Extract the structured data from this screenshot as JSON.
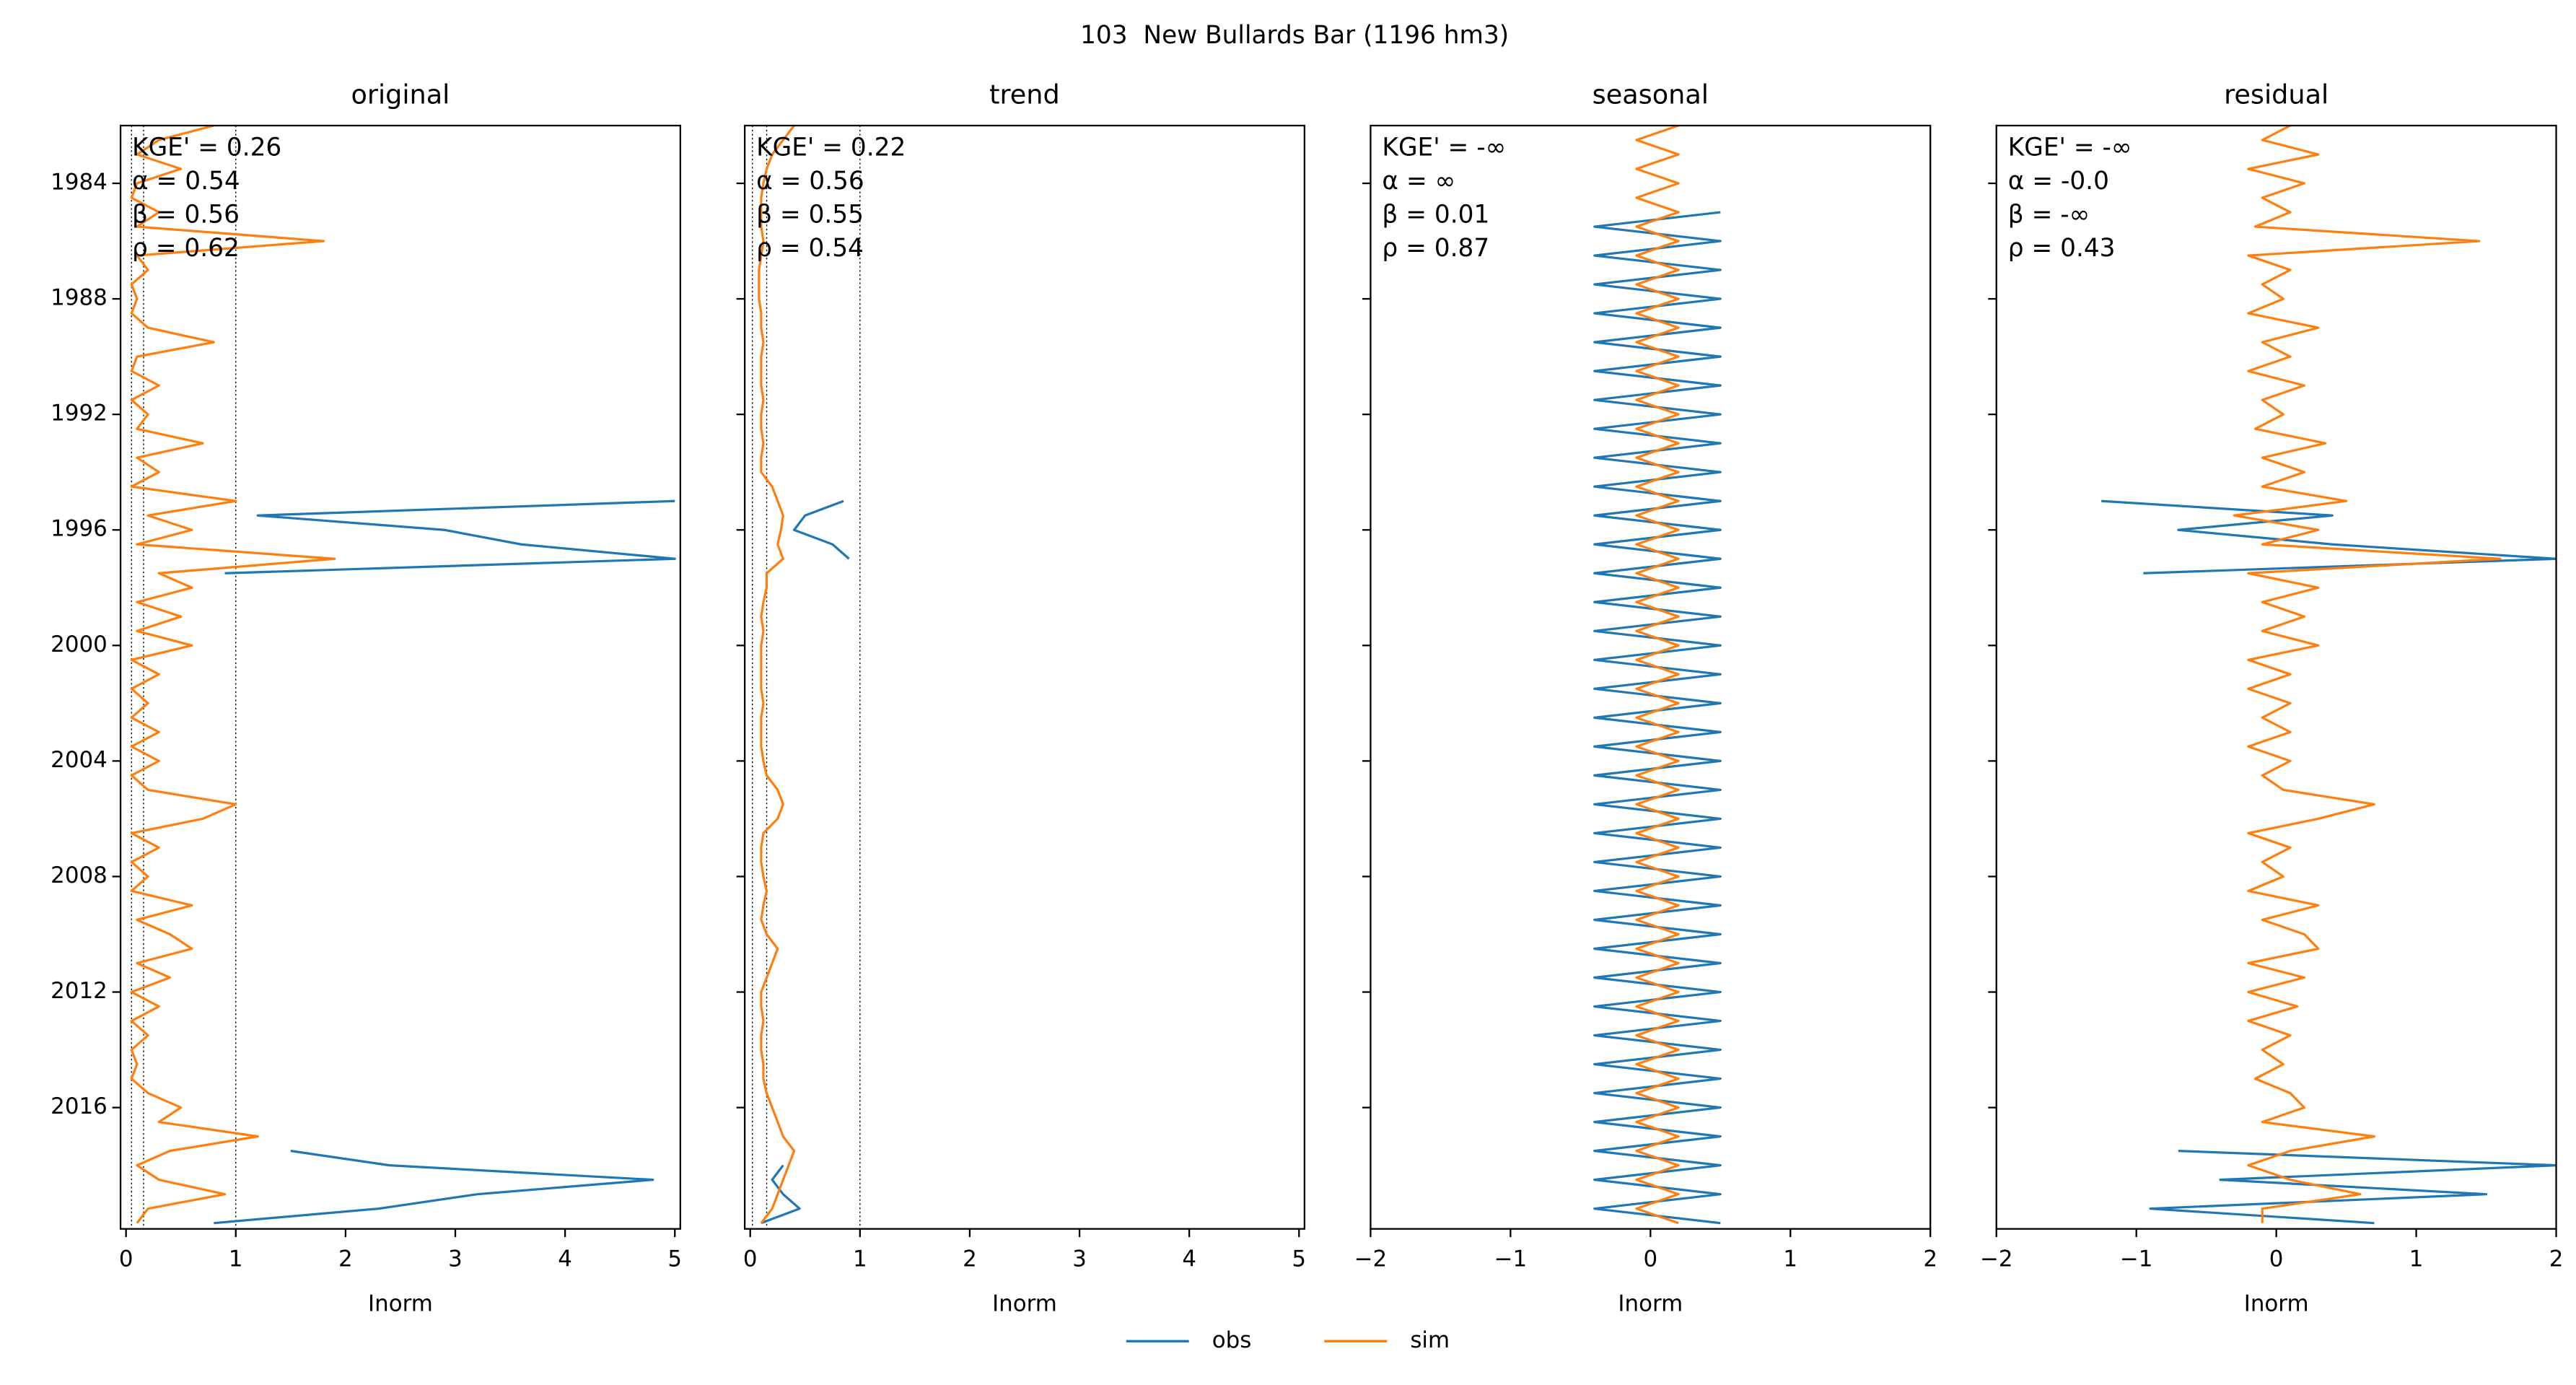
{
  "title": "103  New Bullards Bar (1196 hm3)",
  "chart_data": [
    {
      "type": "line",
      "title": "original",
      "xlabel": "Inorm",
      "xlim": [
        -0.05,
        5.05
      ],
      "xticks": [
        0,
        1,
        2,
        3,
        4,
        5
      ],
      "vlines": [
        0.05,
        0.16,
        1
      ],
      "ylim": [
        1982.0,
        2020.2
      ],
      "yticks": [
        1984,
        1988,
        1992,
        1996,
        2000,
        2004,
        2008,
        2012,
        2016
      ],
      "y": [
        1982.0,
        1982.5,
        1983.0,
        1983.5,
        1984.0,
        1984.5,
        1985.0,
        1985.5,
        1986.0,
        1986.5,
        1987.0,
        1987.5,
        1988.0,
        1988.5,
        1989.0,
        1989.5,
        1990.0,
        1990.5,
        1991.0,
        1991.5,
        1992.0,
        1992.5,
        1993.0,
        1993.5,
        1994.0,
        1994.5,
        1995.0,
        1995.5,
        1996.0,
        1996.5,
        1997.0,
        1997.5,
        1998.0,
        1998.5,
        1999.0,
        1999.5,
        2000.0,
        2000.5,
        2001.0,
        2001.5,
        2002.0,
        2002.5,
        2003.0,
        2003.5,
        2004.0,
        2004.5,
        2005.0,
        2005.5,
        2006.0,
        2006.5,
        2007.0,
        2007.5,
        2008.0,
        2008.5,
        2009.0,
        2009.5,
        2010.0,
        2010.5,
        2011.0,
        2011.5,
        2012.0,
        2012.5,
        2013.0,
        2013.5,
        2014.0,
        2014.5,
        2015.0,
        2015.5,
        2016.0,
        2016.5,
        2017.0,
        2017.5,
        2018.0,
        2018.5,
        2019.0,
        2019.5,
        2020.0
      ],
      "metrics": [
        "KGE' = 0.26",
        "α = 0.54",
        "β = 0.56",
        "ρ = 0.62"
      ],
      "series": [
        {
          "name": "obs",
          "color": "#1f77b4",
          "values": [
            null,
            null,
            null,
            null,
            null,
            null,
            null,
            null,
            null,
            null,
            null,
            null,
            null,
            null,
            null,
            null,
            null,
            null,
            null,
            null,
            null,
            null,
            null,
            null,
            null,
            null,
            5.0,
            1.2,
            2.9,
            3.6,
            5.0,
            0.9,
            null,
            null,
            null,
            null,
            null,
            null,
            null,
            null,
            null,
            null,
            null,
            null,
            null,
            null,
            null,
            null,
            null,
            null,
            null,
            null,
            null,
            null,
            null,
            null,
            null,
            null,
            null,
            null,
            null,
            null,
            null,
            null,
            null,
            null,
            null,
            null,
            null,
            null,
            null,
            1.5,
            2.4,
            4.8,
            3.2,
            2.3,
            0.8
          ]
        },
        {
          "name": "sim",
          "color": "#ff7f0e",
          "values": [
            0.8,
            0.3,
            0.1,
            0.5,
            0.1,
            0.05,
            0.3,
            0.1,
            1.8,
            0.1,
            0.2,
            0.05,
            0.1,
            0.05,
            0.2,
            0.8,
            0.1,
            0.05,
            0.3,
            0.05,
            0.2,
            0.1,
            0.7,
            0.1,
            0.3,
            0.05,
            1.0,
            0.2,
            0.6,
            0.1,
            1.9,
            0.3,
            0.6,
            0.1,
            0.5,
            0.1,
            0.6,
            0.05,
            0.3,
            0.05,
            0.2,
            0.05,
            0.3,
            0.05,
            0.3,
            0.05,
            0.2,
            1.0,
            0.7,
            0.05,
            0.3,
            0.05,
            0.2,
            0.05,
            0.6,
            0.1,
            0.4,
            0.6,
            0.1,
            0.4,
            0.05,
            0.3,
            0.05,
            0.2,
            0.05,
            0.1,
            0.05,
            0.2,
            0.5,
            0.3,
            1.2,
            0.4,
            0.1,
            0.3,
            0.9,
            0.2,
            0.1
          ]
        }
      ]
    },
    {
      "type": "line",
      "title": "trend",
      "xlabel": "Inorm",
      "sharey": true,
      "xlim": [
        -0.05,
        5.05
      ],
      "xticks": [
        0,
        1,
        2,
        3,
        4,
        5
      ],
      "vlines": [
        0.02,
        0.15,
        1
      ],
      "metrics": [
        "KGE' = 0.22",
        "α = 0.56",
        "β = 0.55",
        "ρ = 0.54"
      ],
      "series": [
        {
          "name": "obs",
          "color": "#1f77b4",
          "values": [
            null,
            null,
            null,
            null,
            null,
            null,
            null,
            null,
            null,
            null,
            null,
            null,
            null,
            null,
            null,
            null,
            null,
            null,
            null,
            null,
            null,
            null,
            null,
            null,
            null,
            null,
            0.85,
            0.5,
            0.4,
            0.75,
            0.9,
            null,
            null,
            null,
            null,
            null,
            null,
            null,
            null,
            null,
            null,
            null,
            null,
            null,
            null,
            null,
            null,
            null,
            null,
            null,
            null,
            null,
            null,
            null,
            null,
            null,
            null,
            null,
            null,
            null,
            null,
            null,
            null,
            null,
            null,
            null,
            null,
            null,
            null,
            null,
            null,
            null,
            0.3,
            0.2,
            0.3,
            0.45,
            0.1
          ]
        },
        {
          "name": "sim",
          "color": "#ff7f0e",
          "values": [
            0.4,
            0.3,
            0.2,
            0.15,
            0.12,
            0.1,
            0.1,
            0.1,
            0.12,
            0.1,
            0.08,
            0.08,
            0.08,
            0.1,
            0.1,
            0.12,
            0.1,
            0.1,
            0.1,
            0.12,
            0.1,
            0.1,
            0.12,
            0.1,
            0.1,
            0.2,
            0.25,
            0.3,
            0.28,
            0.25,
            0.3,
            0.15,
            0.15,
            0.12,
            0.1,
            0.12,
            0.1,
            0.1,
            0.1,
            0.1,
            0.12,
            0.1,
            0.1,
            0.1,
            0.12,
            0.15,
            0.25,
            0.3,
            0.25,
            0.12,
            0.1,
            0.1,
            0.12,
            0.15,
            0.12,
            0.1,
            0.15,
            0.25,
            0.2,
            0.15,
            0.1,
            0.1,
            0.12,
            0.1,
            0.1,
            0.12,
            0.12,
            0.15,
            0.2,
            0.25,
            0.3,
            0.4,
            0.35,
            0.3,
            0.25,
            0.2,
            0.1
          ]
        }
      ]
    },
    {
      "type": "line",
      "title": "seasonal",
      "xlabel": "Inorm",
      "sharey": true,
      "xlim": [
        -2,
        2
      ],
      "xticks": [
        {
          "value": -2,
          "label": "−2"
        },
        {
          "value": -1,
          "label": "−1"
        },
        0,
        1,
        2
      ],
      "metrics": [
        "KGE' = -∞",
        "α = ∞",
        "β = 0.01",
        "ρ = 0.87"
      ],
      "series": [
        {
          "name": "obs",
          "color": "#1f77b4",
          "values": [
            null,
            null,
            null,
            null,
            null,
            null,
            0.5,
            -0.4,
            0.5,
            -0.4,
            0.5,
            -0.4,
            0.5,
            -0.4,
            0.5,
            -0.4,
            0.5,
            -0.4,
            0.5,
            -0.4,
            0.5,
            -0.4,
            0.5,
            -0.4,
            0.5,
            -0.4,
            0.5,
            -0.4,
            0.5,
            -0.4,
            0.5,
            -0.4,
            0.5,
            -0.4,
            0.5,
            -0.4,
            0.5,
            -0.4,
            0.5,
            -0.4,
            0.5,
            -0.4,
            0.5,
            -0.4,
            0.5,
            -0.4,
            0.5,
            -0.4,
            0.5,
            -0.4,
            0.5,
            -0.4,
            0.5,
            -0.4,
            0.5,
            -0.4,
            0.5,
            -0.4,
            0.5,
            -0.4,
            0.5,
            -0.4,
            0.5,
            -0.4,
            0.5,
            -0.4,
            0.5,
            -0.4,
            0.5,
            -0.4,
            0.5,
            -0.4,
            0.5,
            -0.4,
            0.5,
            -0.4,
            0.5
          ]
        },
        {
          "name": "sim",
          "color": "#ff7f0e",
          "values": [
            0.2,
            -0.1,
            0.2,
            -0.1,
            0.2,
            -0.1,
            0.2,
            -0.1,
            0.2,
            -0.1,
            0.2,
            -0.1,
            0.2,
            -0.1,
            0.2,
            -0.1,
            0.2,
            -0.1,
            0.2,
            -0.1,
            0.2,
            -0.1,
            0.2,
            -0.1,
            0.2,
            -0.1,
            0.2,
            -0.1,
            0.2,
            -0.1,
            0.2,
            -0.1,
            0.2,
            -0.1,
            0.2,
            -0.1,
            0.2,
            -0.1,
            0.2,
            -0.1,
            0.2,
            -0.1,
            0.2,
            -0.1,
            0.2,
            -0.1,
            0.2,
            -0.1,
            0.2,
            -0.1,
            0.2,
            -0.1,
            0.2,
            -0.1,
            0.2,
            -0.1,
            0.2,
            -0.1,
            0.2,
            -0.1,
            0.2,
            -0.1,
            0.2,
            -0.1,
            0.2,
            -0.1,
            0.2,
            -0.1,
            0.2,
            -0.1,
            0.2,
            -0.1,
            0.2,
            -0.1,
            0.2,
            -0.1,
            0.2
          ]
        }
      ]
    },
    {
      "type": "line",
      "title": "residual",
      "xlabel": "Inorm",
      "sharey": true,
      "xlim": [
        -2,
        2
      ],
      "xticks": [
        {
          "value": -2,
          "label": "−2"
        },
        {
          "value": -1,
          "label": "−1"
        },
        0,
        1,
        2
      ],
      "metrics": [
        "KGE' = -∞",
        "α = -0.0",
        "β = -∞",
        "ρ = 0.43"
      ],
      "series": [
        {
          "name": "obs",
          "color": "#1f77b4",
          "values": [
            null,
            null,
            null,
            null,
            null,
            null,
            null,
            null,
            null,
            null,
            null,
            null,
            null,
            null,
            null,
            null,
            null,
            null,
            null,
            null,
            null,
            null,
            null,
            null,
            null,
            null,
            -1.25,
            0.4,
            -0.7,
            0.4,
            2.0,
            -0.95,
            null,
            null,
            null,
            null,
            null,
            null,
            null,
            null,
            null,
            null,
            null,
            null,
            null,
            null,
            null,
            null,
            null,
            null,
            null,
            null,
            null,
            null,
            null,
            null,
            null,
            null,
            null,
            null,
            null,
            null,
            null,
            null,
            null,
            null,
            null,
            null,
            null,
            null,
            null,
            -0.7,
            2.0,
            -0.4,
            1.5,
            -0.9,
            0.7
          ]
        },
        {
          "name": "sim",
          "color": "#ff7f0e",
          "values": [
            0.1,
            -0.1,
            0.3,
            -0.2,
            0.2,
            -0.1,
            0.1,
            -0.15,
            1.45,
            -0.2,
            0.1,
            -0.1,
            0.05,
            -0.2,
            0.3,
            -0.1,
            0.1,
            -0.2,
            0.2,
            -0.1,
            0.05,
            -0.15,
            0.35,
            -0.1,
            0.2,
            -0.1,
            0.5,
            -0.3,
            0.3,
            -0.1,
            1.6,
            -0.2,
            0.3,
            -0.1,
            0.2,
            -0.1,
            0.3,
            -0.2,
            0.1,
            -0.2,
            0.1,
            -0.1,
            0.1,
            -0.2,
            0.1,
            -0.1,
            0.05,
            0.7,
            0.3,
            -0.2,
            0.1,
            -0.1,
            0.05,
            -0.2,
            0.3,
            -0.1,
            0.2,
            0.3,
            -0.2,
            0.2,
            -0.2,
            0.15,
            -0.2,
            0.1,
            -0.1,
            0.05,
            -0.15,
            0.1,
            0.2,
            -0.1,
            0.7,
            0.1,
            -0.2,
            0.1,
            0.6,
            -0.1,
            -0.1
          ]
        }
      ]
    }
  ]
}
